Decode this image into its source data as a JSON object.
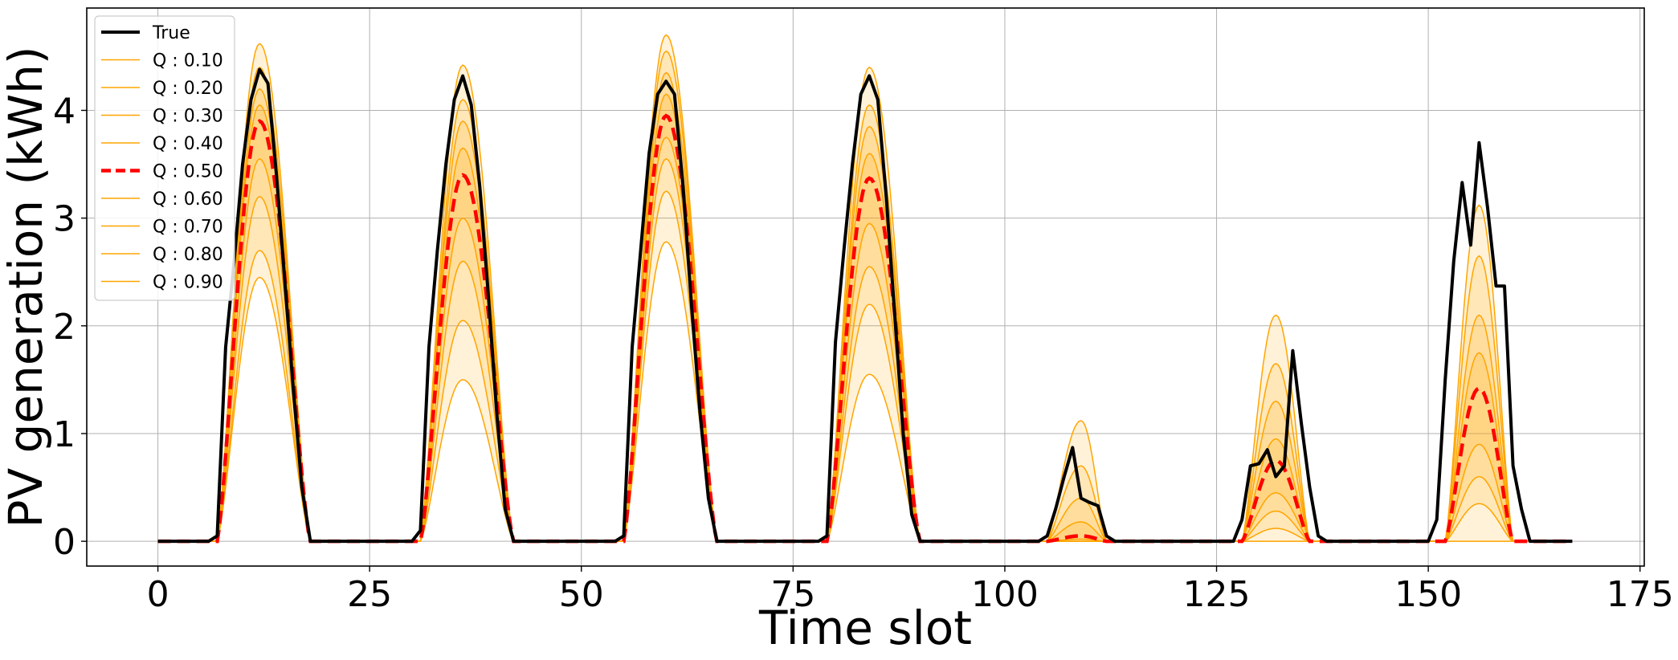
{
  "chart_data": {
    "type": "line",
    "xlabel": "Time slot",
    "ylabel": "PV generation (kWh)",
    "xlim": [
      -8.4,
      175.5
    ],
    "ylim": [
      -0.23,
      4.95
    ],
    "xticks": [
      0,
      25,
      50,
      75,
      100,
      125,
      150,
      175
    ],
    "yticks": [
      0,
      1,
      2,
      3,
      4
    ],
    "grid": true,
    "legend_position": "upper-left",
    "colors": {
      "true": "#000000",
      "median": "#ff0000",
      "quantile": "#ffa500"
    },
    "legend": [
      "True",
      "Q : 0.10",
      "Q : 0.20",
      "Q : 0.30",
      "Q : 0.40",
      "Q : 0.50",
      "Q : 0.60",
      "Q : 0.70",
      "Q : 0.80",
      "Q : 0.90"
    ],
    "x_start": 0,
    "x_end": 167,
    "true_series": {
      "name": "True",
      "peaks": [
        [
          [
            7,
            0.05
          ],
          [
            8,
            1.8
          ],
          [
            9,
            2.6
          ],
          [
            10,
            3.5
          ],
          [
            11,
            4.1
          ],
          [
            12,
            4.38
          ],
          [
            13,
            4.25
          ],
          [
            14,
            3.4
          ],
          [
            15,
            2.4
          ],
          [
            16,
            1.4
          ],
          [
            17,
            0.5
          ],
          [
            18,
            0.0
          ]
        ],
        [
          [
            30,
            0.0
          ],
          [
            31,
            0.1
          ],
          [
            32,
            1.8
          ],
          [
            33,
            2.7
          ],
          [
            34,
            3.5
          ],
          [
            35,
            4.1
          ],
          [
            36,
            4.32
          ],
          [
            37,
            4.05
          ],
          [
            38,
            3.3
          ],
          [
            39,
            2.3
          ],
          [
            40,
            1.2
          ],
          [
            41,
            0.3
          ],
          [
            42,
            0.0
          ]
        ],
        [
          [
            54,
            0.0
          ],
          [
            55,
            0.05
          ],
          [
            56,
            1.8
          ],
          [
            57,
            2.7
          ],
          [
            58,
            3.6
          ],
          [
            59,
            4.15
          ],
          [
            60,
            4.27
          ],
          [
            61,
            4.15
          ],
          [
            62,
            3.3
          ],
          [
            63,
            2.2
          ],
          [
            64,
            1.2
          ],
          [
            65,
            0.4
          ],
          [
            66,
            0.0
          ]
        ],
        [
          [
            78,
            0.0
          ],
          [
            79,
            0.05
          ],
          [
            80,
            1.85
          ],
          [
            81,
            2.7
          ],
          [
            82,
            3.5
          ],
          [
            83,
            4.15
          ],
          [
            84,
            4.32
          ],
          [
            85,
            4.1
          ],
          [
            86,
            3.2
          ],
          [
            87,
            2.1
          ],
          [
            88,
            1.0
          ],
          [
            89,
            0.25
          ],
          [
            90,
            0.0
          ]
        ],
        [
          [
            104,
            0.0
          ],
          [
            105,
            0.05
          ],
          [
            106,
            0.3
          ],
          [
            107,
            0.6
          ],
          [
            108,
            0.87
          ],
          [
            109,
            0.4
          ],
          [
            110,
            0.36
          ],
          [
            111,
            0.33
          ],
          [
            112,
            0.05
          ],
          [
            113,
            0.0
          ]
        ],
        [
          [
            127,
            0.0
          ],
          [
            128,
            0.2
          ],
          [
            129,
            0.7
          ],
          [
            130,
            0.72
          ],
          [
            131,
            0.85
          ],
          [
            132,
            0.6
          ],
          [
            133,
            0.7
          ],
          [
            134,
            1.77
          ],
          [
            135,
            1.1
          ],
          [
            136,
            0.5
          ],
          [
            137,
            0.05
          ],
          [
            138,
            0.0
          ]
        ],
        [
          [
            150,
            0.0
          ],
          [
            151,
            0.2
          ],
          [
            152,
            1.5
          ],
          [
            153,
            2.6
          ],
          [
            154,
            3.33
          ],
          [
            155,
            2.75
          ],
          [
            156,
            3.7
          ],
          [
            157,
            3.1
          ],
          [
            158,
            2.37
          ],
          [
            159,
            2.37
          ],
          [
            160,
            0.7
          ],
          [
            161,
            0.3
          ],
          [
            162,
            0.0
          ]
        ]
      ]
    },
    "quantile_series": [
      {
        "name": "Q : 0.10",
        "q": 0.1,
        "day_peaks": [
          2.45,
          1.5,
          2.78,
          1.55,
          0.0,
          0.0,
          0.0
        ]
      },
      {
        "name": "Q : 0.20",
        "q": 0.2,
        "day_peaks": [
          2.7,
          2.05,
          3.25,
          2.2,
          0.0,
          0.12,
          0.35
        ]
      },
      {
        "name": "Q : 0.30",
        "q": 0.3,
        "day_peaks": [
          3.2,
          2.6,
          3.55,
          2.55,
          0.0,
          0.28,
          0.6
        ]
      },
      {
        "name": "Q : 0.40",
        "q": 0.4,
        "day_peaks": [
          3.55,
          3.0,
          3.75,
          2.95,
          0.02,
          0.45,
          0.9
        ]
      },
      {
        "name": "Q : 0.50",
        "q": 0.5,
        "day_peaks": [
          3.9,
          3.4,
          3.95,
          3.37,
          0.05,
          0.75,
          1.42
        ]
      },
      {
        "name": "Q : 0.60",
        "q": 0.6,
        "day_peaks": [
          4.05,
          3.65,
          4.15,
          3.6,
          0.18,
          0.95,
          1.75
        ]
      },
      {
        "name": "Q : 0.70",
        "q": 0.7,
        "day_peaks": [
          4.2,
          3.9,
          4.35,
          3.85,
          0.4,
          1.3,
          2.1
        ]
      },
      {
        "name": "Q : 0.80",
        "q": 0.8,
        "day_peaks": [
          4.4,
          4.1,
          4.55,
          4.05,
          0.7,
          1.65,
          2.65
        ]
      },
      {
        "name": "Q : 0.90",
        "q": 0.9,
        "day_peaks": [
          4.62,
          4.42,
          4.7,
          4.4,
          1.12,
          2.1,
          3.12
        ]
      }
    ],
    "quantile_days": [
      {
        "start": 7,
        "peak": 12,
        "end": 18
      },
      {
        "start": 31,
        "peak": 36,
        "end": 42
      },
      {
        "start": 55,
        "peak": 60,
        "end": 66
      },
      {
        "start": 79,
        "peak": 84,
        "end": 90
      },
      {
        "start": 105,
        "peak": 109,
        "end": 112
      },
      {
        "start": 128,
        "peak": 132,
        "end": 136
      },
      {
        "start": 152,
        "peak": 156,
        "end": 160
      }
    ]
  }
}
